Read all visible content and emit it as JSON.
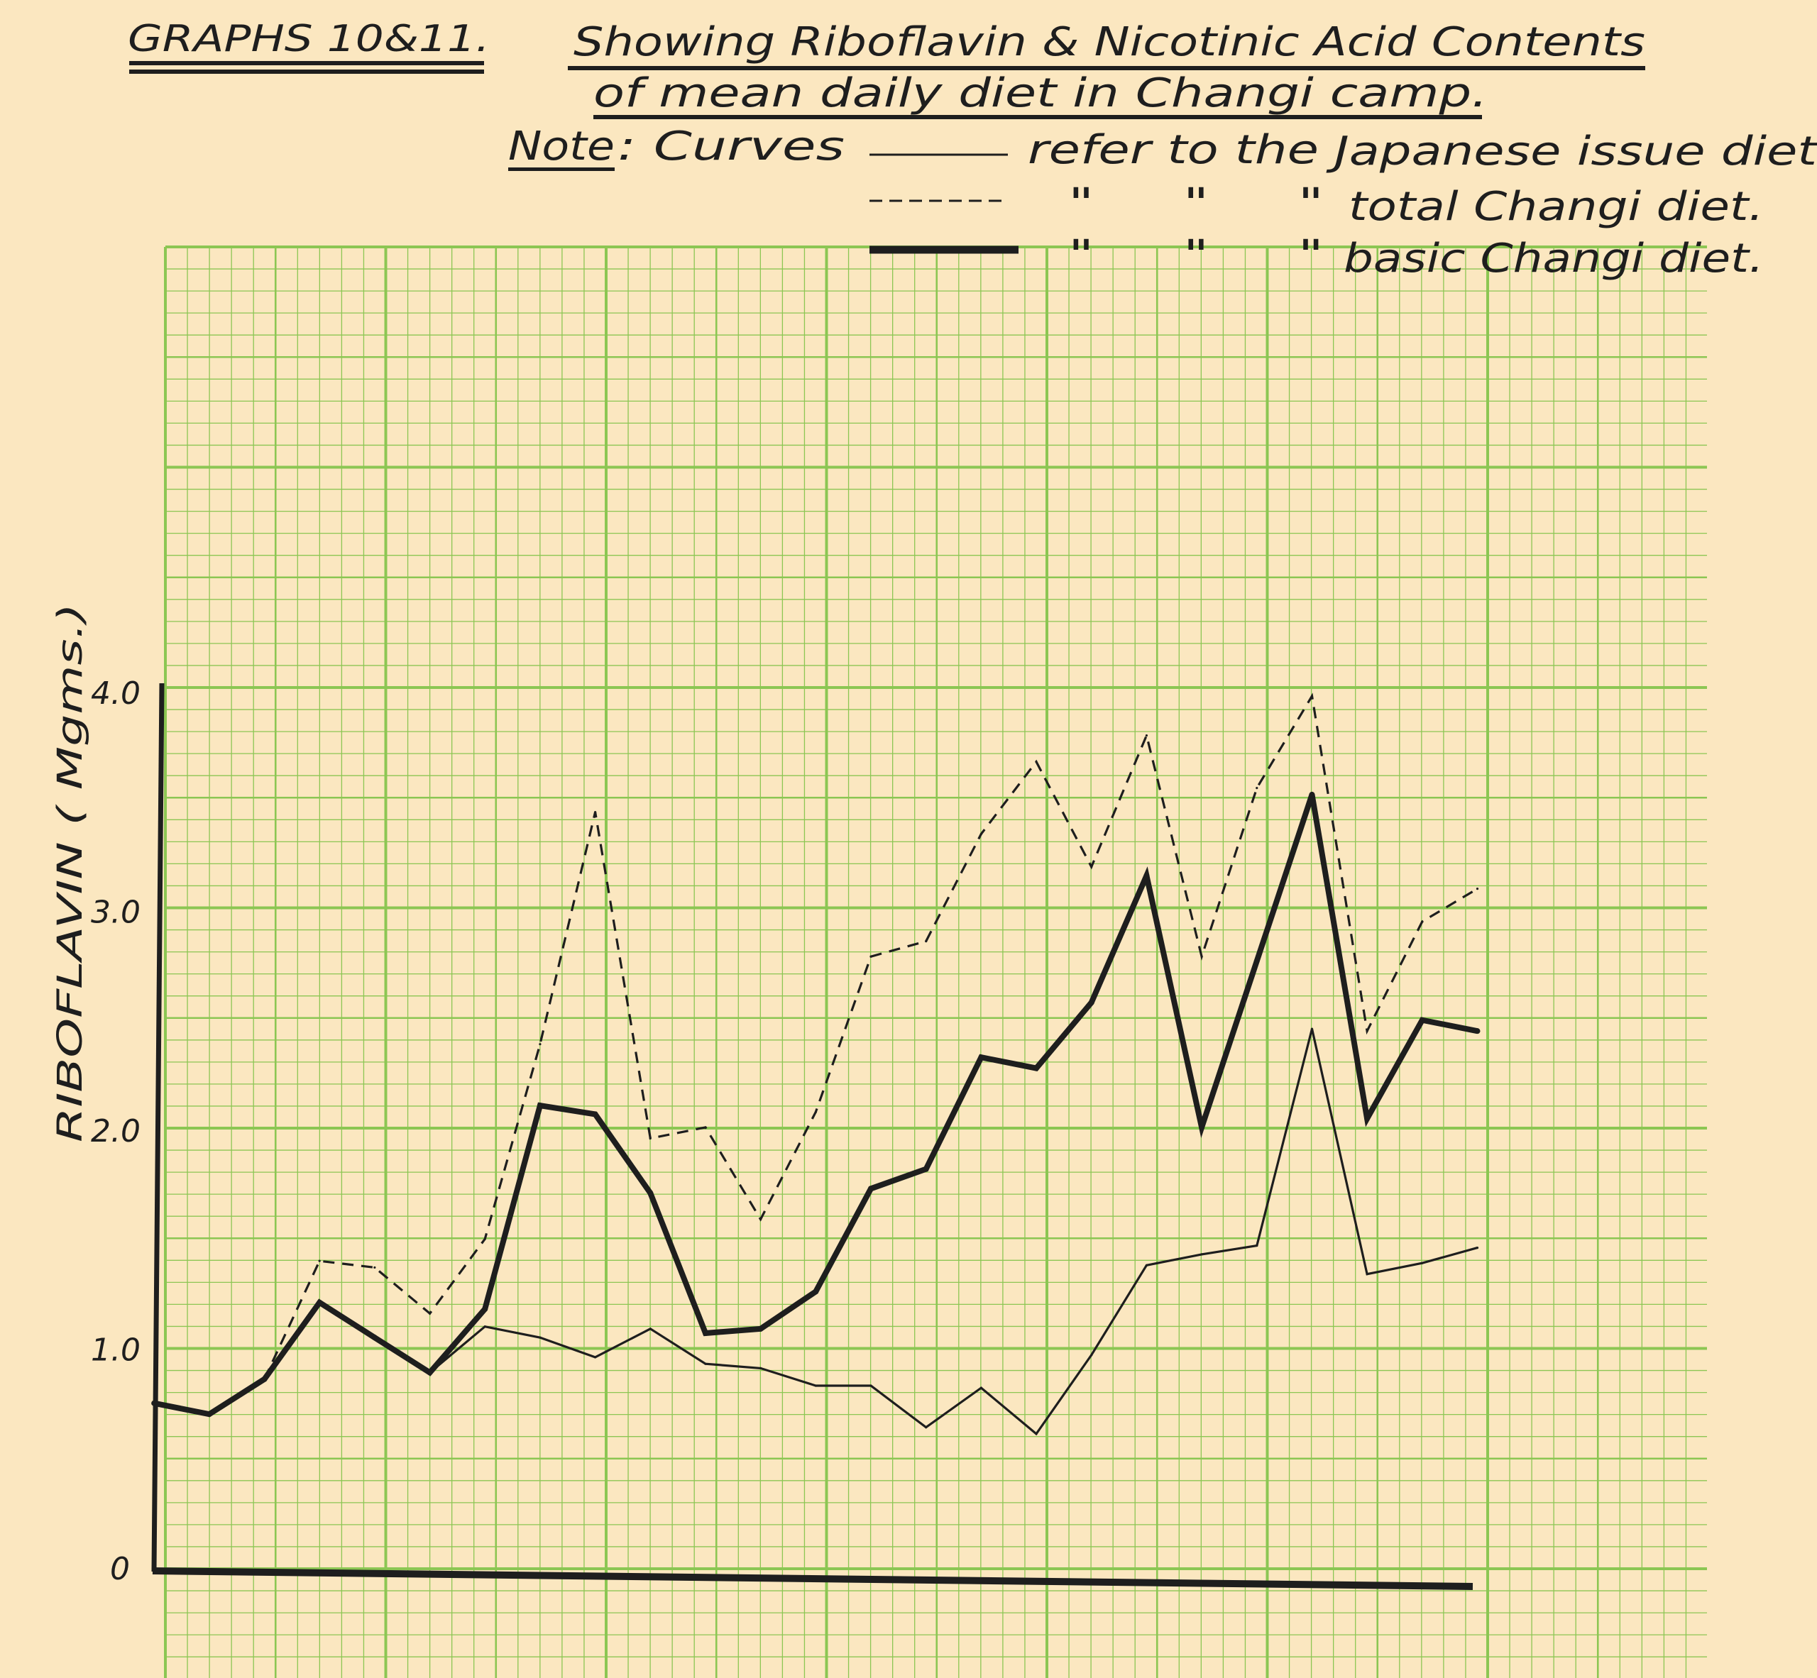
{
  "header": {
    "graph_ref": "GRAPHS 10&11.",
    "title_line1": "Showing Riboflavin & Nicotinic Acid Contents",
    "title_line2": "of mean daily diet in Changi camp.",
    "note_label": "Note",
    "note_text": ": Curves",
    "legend": [
      {
        "style": "thin solid",
        "ditto": "refer to the",
        "text": "Japanese issue diet"
      },
      {
        "style": "dashed",
        "ditto": "\"     \"     \"",
        "text": "total Changi diet."
      },
      {
        "style": "thick solid",
        "ditto": "\"     \"     \"",
        "text": "basic Changi diet."
      }
    ]
  },
  "colors": {
    "paper": "#fbe7c0",
    "grid": "#8cc653",
    "ink": "#1e1e1e"
  },
  "chart_data": {
    "type": "line",
    "title": "Showing Riboflavin & Nicotinic Acid Contents of mean daily diet in Changi camp.",
    "ylabel": "RIBOFLAVIN ( Mgms.)",
    "xlabel": "",
    "ylim": [
      0,
      4.0
    ],
    "yticks": [
      "0",
      "1.0",
      "2.0",
      "3.0",
      "4.0"
    ],
    "grid": true,
    "legend_position": "top",
    "x": [
      1,
      2,
      3,
      4,
      5,
      6,
      7,
      8,
      9,
      10,
      11,
      12,
      13,
      14,
      15,
      16,
      17,
      18,
      19,
      20,
      21,
      22,
      23,
      24,
      25
    ],
    "series": [
      {
        "name": "Japanese issue diet",
        "style": "thin",
        "values": [
          0.76,
          0.71,
          0.87,
          1.22,
          1.06,
          0.9,
          1.11,
          1.06,
          0.97,
          1.1,
          0.94,
          0.92,
          0.84,
          0.84,
          0.65,
          0.83,
          0.62,
          0.98,
          1.39,
          1.44,
          1.48,
          2.47,
          1.35,
          1.4,
          1.47
        ]
      },
      {
        "name": "total Changi diet",
        "style": "dashed",
        "values": [
          null,
          null,
          0.87,
          1.41,
          1.38,
          1.17,
          1.51,
          2.4,
          3.46,
          1.97,
          2.02,
          1.6,
          2.09,
          2.8,
          2.87,
          3.36,
          3.69,
          3.21,
          3.81,
          2.8,
          3.57,
          3.99,
          2.46,
          2.96,
          3.11
        ]
      },
      {
        "name": "basic Changi diet",
        "style": "thick",
        "values": [
          0.76,
          0.71,
          0.87,
          1.22,
          1.06,
          0.9,
          1.19,
          2.12,
          2.08,
          1.72,
          1.08,
          1.1,
          1.27,
          1.74,
          1.83,
          2.34,
          2.29,
          2.59,
          3.17,
          2.02,
          2.78,
          3.54,
          2.06,
          2.51,
          2.46
        ]
      }
    ]
  }
}
